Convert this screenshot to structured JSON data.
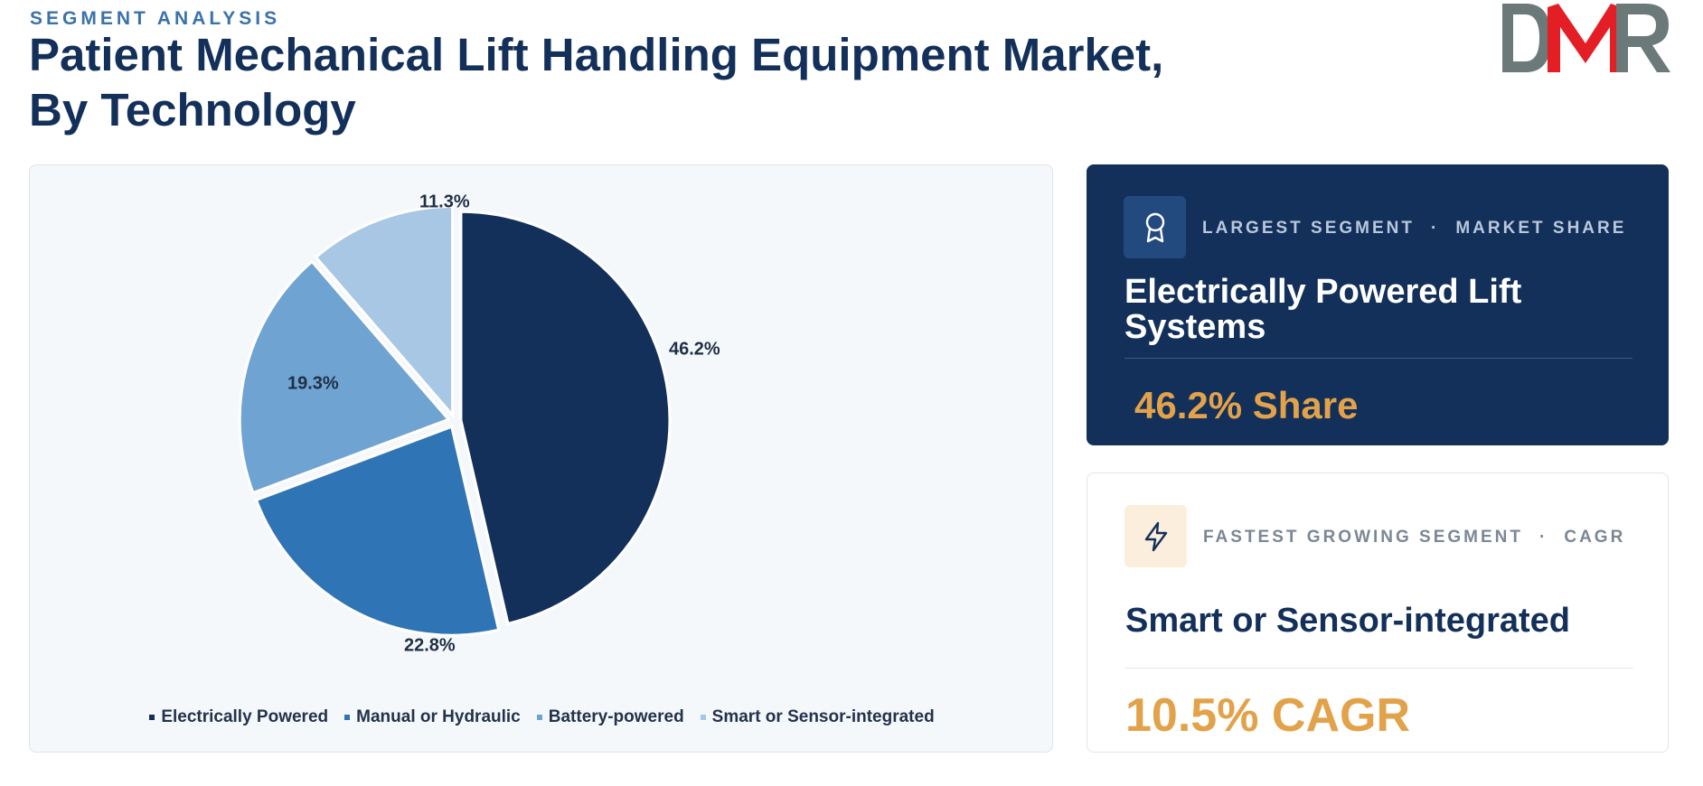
{
  "header": {
    "eyebrow": "SEGMENT ANALYSIS",
    "title_line1": "Patient Mechanical Lift Handling Equipment Market,",
    "title_line2": "By Technology"
  },
  "logo": {
    "text": "DMR",
    "colors": {
      "d": "#6b7a78",
      "m": "#e31e24",
      "r": "#6b7a78"
    }
  },
  "chart_data": {
    "type": "pie",
    "categories": [
      "Electrically Powered",
      "Manual or Hydraulic",
      "Battery-powered",
      "Smart or Sensor-integrated"
    ],
    "values": [
      46.2,
      22.8,
      19.3,
      11.3
    ],
    "labels": [
      "46.2%",
      "22.8%",
      "19.3%",
      "11.3%"
    ],
    "colors": [
      "#13305a",
      "#2f74b5",
      "#6fa3d2",
      "#a7c7e5"
    ],
    "start_angle_deg": 0,
    "direction": "clockwise",
    "legend_position": "bottom"
  },
  "largest": {
    "icon": "award-ribbon-icon",
    "tag_left": "LARGEST SEGMENT",
    "tag_sep": "·",
    "tag_right": "MARKET SHARE",
    "name": "Electrically Powered Lift Systems",
    "value": "46.2% Share"
  },
  "fastest": {
    "icon": "lightning-bolt-icon",
    "tag_left": "FASTEST GROWING SEGMENT",
    "tag_sep": "·",
    "tag_right": "CAGR",
    "name": "Smart or Sensor-integrated",
    "value": "10.5% CAGR"
  }
}
